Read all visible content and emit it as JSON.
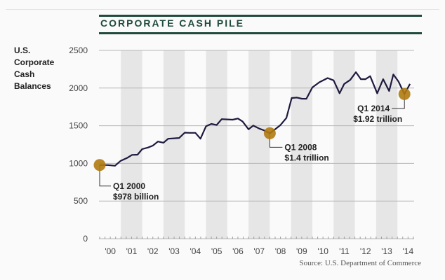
{
  "chart_data": {
    "type": "line",
    "title": "CORPORATE CASH PILE",
    "ylabel": "U.S. Corporate Cash Balances",
    "xlabel": "",
    "source": "Source: U.S. Department of Commerce",
    "ylim": [
      0,
      2500
    ],
    "yticks": [
      "0",
      "500",
      "1000",
      "1500",
      "2000",
      "2500"
    ],
    "ytick_values": [
      0,
      500,
      1000,
      1500,
      2000,
      2500
    ],
    "xticks": [
      "'00",
      "'01",
      "'02",
      "'03",
      "'04",
      "'05",
      "'06",
      "'07",
      "'08",
      "'09",
      "'10",
      "'11",
      "'12",
      "'13",
      "'14"
    ],
    "grid": true,
    "shaded_years": [
      "'01",
      "'03",
      "'05",
      "'07",
      "'09",
      "'11",
      "'13"
    ],
    "series": [
      {
        "name": "U.S. Corporate Cash Balances ($ billions)",
        "color": "#1e1a3f",
        "x": [
          2000.0,
          2000.39,
          2000.72,
          2000.99,
          2001.28,
          2001.52,
          2001.78,
          2002.0,
          2002.28,
          2002.5,
          2002.74,
          2003.0,
          2003.22,
          2003.5,
          2003.74,
          2004.0,
          2004.22,
          2004.5,
          2004.74,
          2005.0,
          2005.25,
          2005.5,
          2005.74,
          2006.0,
          2006.25,
          2006.5,
          2006.72,
          2007.0,
          2007.22,
          2007.5,
          2007.72,
          2008.0,
          2008.22,
          2008.5,
          2008.78,
          2009.03,
          2009.28,
          2009.5,
          2009.72,
          2010.0,
          2010.33,
          2010.72,
          2011.0,
          2011.28,
          2011.5,
          2011.78,
          2012.05,
          2012.28,
          2012.5,
          2012.72,
          2013.05,
          2013.33,
          2013.61,
          2013.81,
          2014.05,
          2014.33,
          2014.59
        ],
        "values": [
          978,
          978,
          968,
          1034,
          1071,
          1112,
          1115,
          1190,
          1211,
          1236,
          1290,
          1274,
          1327,
          1333,
          1337,
          1408,
          1405,
          1405,
          1327,
          1493,
          1524,
          1509,
          1587,
          1584,
          1580,
          1596,
          1556,
          1453,
          1502,
          1462,
          1440,
          1400,
          1446,
          1509,
          1602,
          1868,
          1874,
          1859,
          1858,
          2008,
          2077,
          2133,
          2102,
          1930,
          2055,
          2108,
          2211,
          2118,
          2118,
          2158,
          1930,
          2118,
          1961,
          2180,
          2087,
          1920,
          2055
        ]
      }
    ],
    "annotations": [
      {
        "x": 2000.0,
        "value": 978,
        "label": "Q1 2000",
        "sub": "$978 billion"
      },
      {
        "x": 2008.0,
        "value": 1400,
        "label": "Q1 2008",
        "sub": "$1.4 trillion"
      },
      {
        "x": 2014.33,
        "value": 1920,
        "label": "Q1 2014",
        "sub": "$1.92 trillion"
      }
    ],
    "colors": {
      "marker": "#b07a10",
      "title": "#1f4a3c",
      "band": "#e6e6e6",
      "grid": "#b5b5b5"
    }
  }
}
